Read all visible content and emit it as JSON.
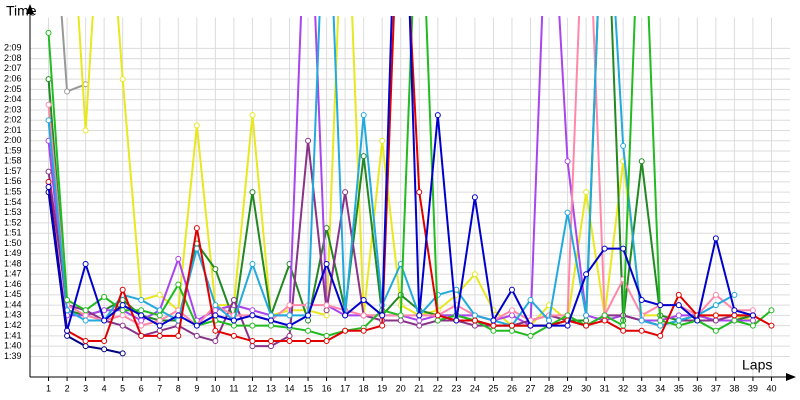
{
  "chart_data": {
    "type": "line",
    "y_label": "Time",
    "x_label": "Laps",
    "x": [
      1,
      2,
      3,
      4,
      5,
      6,
      7,
      8,
      9,
      10,
      11,
      12,
      13,
      14,
      15,
      16,
      17,
      18,
      19,
      20,
      21,
      22,
      23,
      24,
      25,
      26,
      27,
      28,
      29,
      30,
      31,
      32,
      33,
      34,
      35,
      36,
      37,
      38,
      39,
      40
    ],
    "xlim": [
      0,
      41
    ],
    "xticks": [
      1,
      2,
      3,
      4,
      5,
      6,
      7,
      8,
      9,
      10,
      11,
      12,
      13,
      14,
      15,
      16,
      17,
      18,
      19,
      20,
      21,
      22,
      23,
      24,
      25,
      26,
      27,
      28,
      29,
      30,
      31,
      32,
      33,
      34,
      35,
      36,
      37,
      38,
      39,
      40
    ],
    "ylim": [
      97,
      132
    ],
    "yticks": [
      {
        "value": 99,
        "label": "1:39"
      },
      {
        "value": 100,
        "label": "1:40"
      },
      {
        "value": 101,
        "label": "1:41"
      },
      {
        "value": 102,
        "label": "1:42"
      },
      {
        "value": 103,
        "label": "1:43"
      },
      {
        "value": 104,
        "label": "1:44"
      },
      {
        "value": 105,
        "label": "1:45"
      },
      {
        "value": 106,
        "label": "1:46"
      },
      {
        "value": 107,
        "label": "1:47"
      },
      {
        "value": 108,
        "label": "1:48"
      },
      {
        "value": 109,
        "label": "1:49"
      },
      {
        "value": 110,
        "label": "1:50"
      },
      {
        "value": 111,
        "label": "1:51"
      },
      {
        "value": 112,
        "label": "1:52"
      },
      {
        "value": 113,
        "label": "1:53"
      },
      {
        "value": 114,
        "label": "1:54"
      },
      {
        "value": 115,
        "label": "1:55"
      },
      {
        "value": 116,
        "label": "1:56"
      },
      {
        "value": 117,
        "label": "1:57"
      },
      {
        "value": 118,
        "label": "1:58"
      },
      {
        "value": 119,
        "label": "1:59"
      },
      {
        "value": 120,
        "label": "2:00"
      },
      {
        "value": 121,
        "label": "2:01"
      },
      {
        "value": 122,
        "label": "2:02"
      },
      {
        "value": 123,
        "label": "2:03"
      },
      {
        "value": 124,
        "label": "2:04"
      },
      {
        "value": 125,
        "label": "2:05"
      },
      {
        "value": 126,
        "label": "2:06"
      },
      {
        "value": 127,
        "label": "2:07"
      },
      {
        "value": 128,
        "label": "2:08"
      },
      {
        "value": 129,
        "label": "2:09"
      }
    ],
    "grid": true,
    "series": [
      {
        "color": "#000080",
        "values": [
          115,
          101,
          100,
          99.7,
          99.3,
          null,
          null,
          null,
          null,
          null,
          null,
          null,
          null,
          null,
          null,
          null,
          null,
          null,
          null,
          null,
          null,
          null,
          null,
          null,
          null,
          null,
          null,
          null,
          null,
          null,
          null,
          null,
          null,
          null,
          null,
          null,
          null,
          null,
          null,
          null
        ]
      },
      {
        "color": "#999999",
        "values": [
          150,
          124.8,
          125.5,
          null,
          null,
          null,
          null,
          null,
          null,
          null,
          null,
          null,
          null,
          null,
          null,
          null,
          null,
          null,
          null,
          null,
          null,
          null,
          null,
          null,
          null,
          null,
          null,
          null,
          null,
          null,
          null,
          null,
          null,
          null,
          null,
          null,
          null,
          null,
          null,
          null
        ]
      },
      {
        "color": "#e8e820",
        "values": [
          null,
          150,
          121,
          150,
          126,
          104.5,
          105,
          103.5,
          121.5,
          104,
          104,
          122.5,
          103,
          103.5,
          103.5,
          103,
          150,
          103,
          120,
          104,
          103,
          103.5,
          105,
          107,
          103.5,
          102,
          102,
          104,
          102.5,
          115,
          103,
          118,
          103,
          103,
          102.5,
          103,
          103,
          103,
          102.5,
          null
        ]
      },
      {
        "color": "#228822",
        "values": [
          126,
          103.5,
          103,
          103.5,
          104.5,
          103,
          102.5,
          102.5,
          110,
          107.5,
          102.5,
          115,
          103,
          108,
          102.5,
          111.5,
          103.5,
          118.5,
          103,
          105,
          103.5,
          103,
          103,
          102.5,
          102,
          102,
          102,
          102,
          102.5,
          102.5,
          150,
          102.5,
          118,
          103,
          102.5,
          103,
          102.5,
          102.5,
          103,
          null
        ]
      },
      {
        "color": "#aa44ee",
        "values": [
          120,
          103,
          103,
          103.5,
          103.5,
          102.5,
          103.5,
          108.5,
          102.5,
          103.5,
          104,
          103.5,
          103,
          103,
          150,
          104,
          103,
          103,
          103,
          103,
          102.5,
          103,
          103,
          103,
          102.5,
          103,
          102,
          150,
          118,
          103,
          102.5,
          103,
          102.5,
          102.5,
          103,
          103,
          102.5,
          102.5,
          102.5,
          null
        ]
      },
      {
        "color": "#883388",
        "values": [
          117,
          104,
          103.5,
          102.5,
          102,
          101,
          101.5,
          102,
          101,
          100.5,
          104.5,
          100,
          100,
          101,
          120,
          103.5,
          115,
          103,
          102.5,
          102.5,
          102,
          102.5,
          102.5,
          102,
          102,
          102,
          102.5,
          103,
          102.5,
          102,
          103,
          103,
          102.5,
          102,
          102.5,
          102.5,
          102.5,
          103,
          103,
          null
        ]
      },
      {
        "color": "#ff88aa",
        "values": [
          123.5,
          104,
          103,
          102.5,
          103,
          102,
          102.5,
          103.5,
          102,
          104,
          103,
          103,
          102.5,
          104,
          104,
          104,
          103.5,
          103,
          103,
          103,
          103,
          103,
          104,
          103,
          102.5,
          103.5,
          102.5,
          103,
          103,
          150,
          103,
          106.5,
          103,
          104,
          104,
          103,
          105,
          103.5,
          103.5,
          null
        ]
      },
      {
        "color": "#22aadd",
        "values": [
          122,
          103.5,
          102.5,
          102.5,
          105,
          104.5,
          103.5,
          102.5,
          109.5,
          104,
          102.5,
          108,
          103,
          103,
          103,
          150,
          103,
          122.5,
          104,
          108,
          103,
          105,
          105.5,
          103,
          102.5,
          102,
          104.5,
          102.5,
          113,
          103,
          150,
          119.5,
          102.5,
          102,
          102.5,
          103,
          104,
          105,
          null,
          null
        ]
      },
      {
        "color": "#22bb22",
        "values": [
          130.5,
          104.5,
          103.5,
          104.8,
          103.5,
          103.5,
          103,
          106,
          102,
          102.5,
          102,
          102,
          102,
          101.8,
          101.5,
          101,
          101.5,
          101.8,
          103.5,
          103,
          150,
          102.5,
          103,
          102.5,
          101.5,
          101.5,
          101,
          102,
          103,
          102,
          103,
          102,
          150,
          102.5,
          102,
          102.5,
          101.5,
          102.5,
          102,
          103.5
        ]
      },
      {
        "color": "#e00000",
        "values": [
          116,
          101.5,
          100.5,
          100.5,
          105.5,
          101,
          101,
          101,
          111.5,
          101.5,
          101,
          100.5,
          100.5,
          100.5,
          100.5,
          100.5,
          101.5,
          101.5,
          102,
          150,
          115,
          103,
          102.5,
          102.5,
          102,
          102,
          102,
          102,
          102.5,
          102,
          102.5,
          101.5,
          101.5,
          101,
          105,
          103,
          103,
          103,
          103,
          102
        ]
      },
      {
        "color": "#0000cc",
        "values": [
          115.5,
          101.5,
          108,
          102.5,
          104,
          103,
          102,
          103,
          102,
          103,
          102.5,
          103,
          102.5,
          102,
          103,
          108,
          103,
          104.5,
          103,
          160,
          103,
          122.5,
          102.5,
          114.5,
          102.5,
          105.5,
          102,
          102,
          102,
          107,
          109.5,
          109.5,
          104.5,
          104,
          104,
          102.5,
          110.5,
          103.5,
          103,
          null
        ]
      }
    ]
  }
}
